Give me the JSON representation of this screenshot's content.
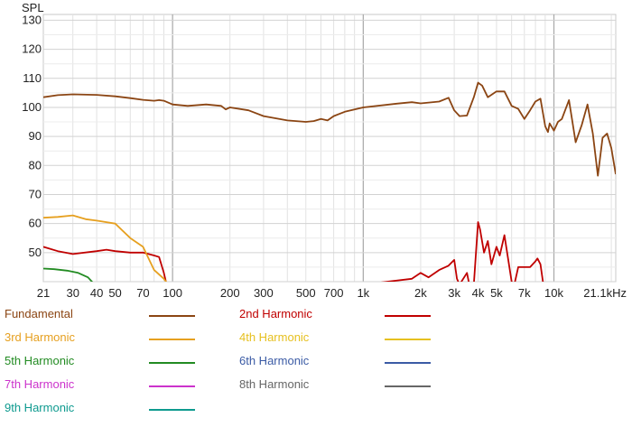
{
  "chart_data": {
    "type": "line",
    "x_scale": "log",
    "ylabel": "SPL",
    "xlim": [
      21,
      21100
    ],
    "ylim": [
      40,
      132
    ],
    "y_ticks": [
      50,
      60,
      70,
      80,
      90,
      100,
      110,
      120,
      130
    ],
    "y_tick_labels": [
      "50",
      "60",
      "70",
      "80",
      "90",
      "100",
      "110",
      "120",
      "130"
    ],
    "x_ticks": [
      21,
      30,
      40,
      50,
      70,
      100,
      200,
      300,
      500,
      700,
      1000,
      2000,
      3000,
      4000,
      5000,
      7000,
      10000,
      21100
    ],
    "x_tick_labels": [
      "21",
      "30",
      "40",
      "50",
      "70",
      "100",
      "200",
      "300",
      "500",
      "700",
      "1k",
      "2k",
      "3k",
      "4k",
      "5k",
      "7k",
      "10k",
      "21.1kHz"
    ],
    "grid": true,
    "series": [
      {
        "name": "Fundamental",
        "color": "#8b4513",
        "x": [
          21,
          25,
          30,
          40,
          50,
          60,
          70,
          80,
          85,
          90,
          100,
          120,
          150,
          180,
          190,
          200,
          250,
          300,
          400,
          500,
          550,
          600,
          650,
          700,
          800,
          1000,
          1500,
          1800,
          2000,
          2500,
          2800,
          3000,
          3200,
          3500,
          3800,
          4000,
          4200,
          4500,
          5000,
          5500,
          6000,
          6500,
          7000,
          7500,
          8000,
          8500,
          9000,
          9300,
          9500,
          10000,
          10500,
          11000,
          12000,
          13000,
          14000,
          15000,
          16000,
          17000,
          18000,
          19000,
          20000,
          21100
        ],
        "y": [
          103.5,
          104.2,
          104.5,
          104.3,
          103.8,
          103.2,
          102.6,
          102.3,
          102.5,
          102.3,
          101,
          100.5,
          101,
          100.5,
          99.3,
          100,
          99,
          97,
          95.5,
          95,
          95.3,
          96,
          95.5,
          97,
          98.5,
          100,
          101.3,
          101.8,
          101.4,
          102,
          103.3,
          99,
          97,
          97.2,
          103.5,
          108.5,
          107.5,
          103.5,
          105.5,
          105.5,
          100.5,
          99.5,
          96,
          99,
          102,
          103,
          93.5,
          91.5,
          94.5,
          92,
          95,
          96,
          102.5,
          88,
          94,
          101,
          91,
          76.5,
          89.5,
          91,
          86,
          77
        ]
      },
      {
        "name": "2nd Harmonic",
        "color": "#c00000",
        "x": [
          21,
          25,
          30,
          40,
          45,
          50,
          60,
          70,
          80,
          85,
          90,
          93,
          1000,
          1800,
          2000,
          2200,
          2500,
          2800,
          3000,
          3100,
          3200,
          3500,
          3600,
          3800,
          3900,
          4000,
          4100,
          4300,
          4500,
          4700,
          5000,
          5200,
          5500,
          6000,
          6200,
          6500,
          7000,
          7500,
          8000,
          8200,
          8500,
          8800,
          9000
        ],
        "y": [
          52,
          50.5,
          49.5,
          50.5,
          51,
          50.5,
          50,
          50,
          49,
          48.5,
          43,
          39,
          39,
          41,
          43,
          41.5,
          44,
          45.5,
          47.5,
          41,
          39,
          43,
          39,
          39,
          50,
          60.5,
          58,
          50,
          54,
          46,
          52,
          49,
          56,
          40,
          39,
          45,
          45,
          45,
          47,
          48,
          46,
          39,
          39
        ]
      },
      {
        "name": "3rd Harmonic",
        "color": "#e6a020",
        "x": [
          21,
          25,
          30,
          35,
          40,
          50,
          60,
          70,
          80,
          90,
          95
        ],
        "y": [
          62,
          62.3,
          62.8,
          61.5,
          61,
          60,
          55,
          52,
          44,
          41,
          39
        ]
      },
      {
        "name": "4th Harmonic",
        "color": "#e6c020",
        "x": [],
        "y": []
      },
      {
        "name": "5th Harmonic",
        "color": "#228b22",
        "x": [
          21,
          24,
          28,
          32,
          36,
          39
        ],
        "y": [
          44.5,
          44.3,
          43.8,
          43,
          41.5,
          39
        ]
      },
      {
        "name": "6th Harmonic",
        "color": "#3b5ba5",
        "x": [],
        "y": []
      },
      {
        "name": "7th Harmonic",
        "color": "#cc33cc",
        "x": [],
        "y": []
      },
      {
        "name": "8th Harmonic",
        "color": "#666666",
        "x": [],
        "y": []
      },
      {
        "name": "9th Harmonic",
        "color": "#0e9a8f",
        "x": [],
        "y": []
      }
    ]
  },
  "legend": [
    {
      "label": "Fundamental",
      "color": "#8b4513"
    },
    {
      "label": "2nd Harmonic",
      "color": "#c00000"
    },
    {
      "label": "3rd Harmonic",
      "color": "#e6a020"
    },
    {
      "label": "4th Harmonic",
      "color": "#e6c020"
    },
    {
      "label": "5th Harmonic",
      "color": "#228b22"
    },
    {
      "label": "6th Harmonic",
      "color": "#3b5ba5"
    },
    {
      "label": "7th Harmonic",
      "color": "#cc33cc"
    },
    {
      "label": "8th Harmonic",
      "color": "#666666"
    },
    {
      "label": "9th Harmonic",
      "color": "#0e9a8f"
    }
  ]
}
